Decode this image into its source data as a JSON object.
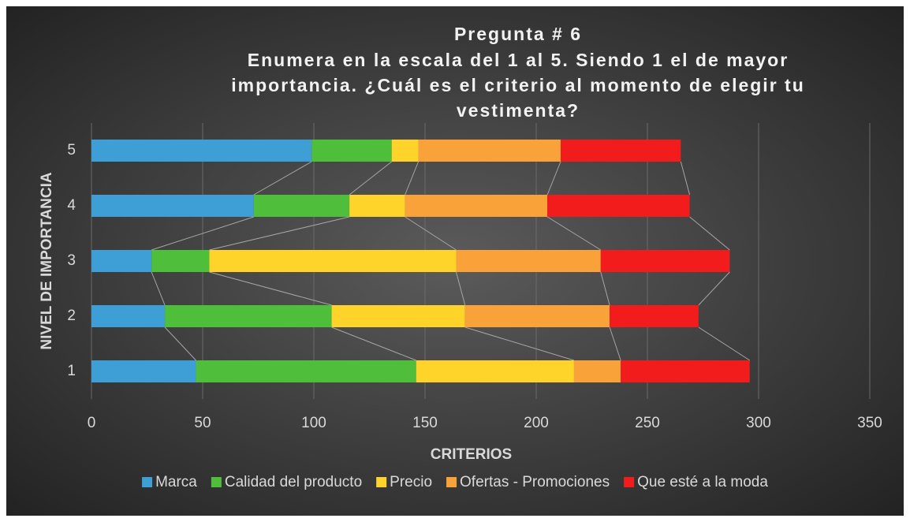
{
  "chart_data": {
    "type": "stacked_barh",
    "title": [
      "Pregunta # 6",
      "Enumera en la escala del 1 al 5. Siendo 1 el de mayor",
      "importancia. ¿Cuál es el criterio al momento de elegir tu",
      "vestimenta?"
    ],
    "xlabel": "CRITERIOS",
    "ylabel": "NIVEL DE IMPORTANCIA",
    "categories": [
      "1",
      "2",
      "3",
      "4",
      "5"
    ],
    "series": [
      {
        "name": "Marca",
        "color": "#3e9fd6",
        "values": [
          47,
          33,
          27,
          73,
          99
        ]
      },
      {
        "name": "Calidad del producto",
        "color": "#4fbe3a",
        "values": [
          99,
          75,
          26,
          43,
          36
        ]
      },
      {
        "name": "Precio",
        "color": "#ffd42a",
        "values": [
          71,
          60,
          111,
          25,
          12
        ]
      },
      {
        "name": "Ofertas - Promociones",
        "color": "#f9a23a",
        "values": [
          21,
          65,
          65,
          64,
          64
        ]
      },
      {
        "name": "Que esté a la moda",
        "color": "#f21c1c",
        "values": [
          58,
          40,
          58,
          64,
          54
        ]
      }
    ],
    "xlim": [
      0,
      350
    ],
    "xticks": [
      0,
      50,
      100,
      150,
      200,
      250,
      300,
      350
    ],
    "grid": true,
    "series_lines": true,
    "legend": "bottom"
  }
}
